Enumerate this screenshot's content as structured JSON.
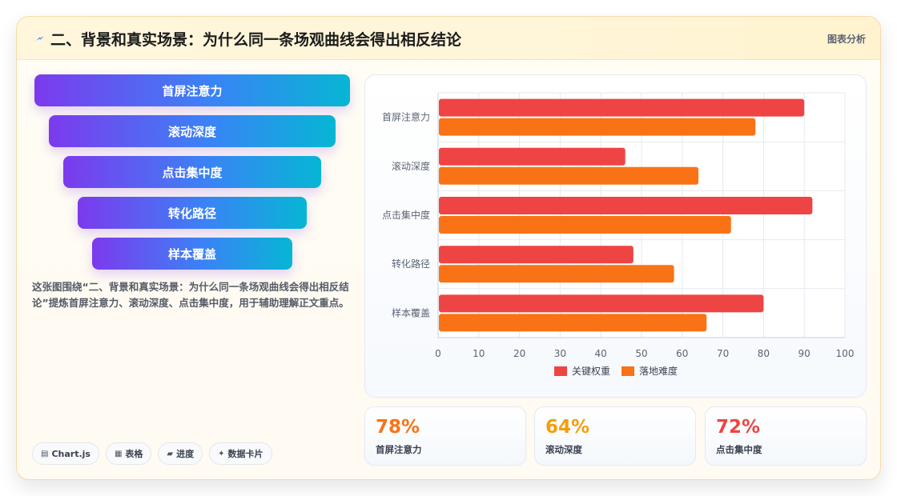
{
  "header": {
    "title": "二、背景和真实场景：为什么同一条场观曲线会得出相反结论",
    "tag": "图表分析"
  },
  "funnel": {
    "steps": [
      "首屏注意力",
      "滚动深度",
      "点击集中度",
      "转化路径",
      "样本覆盖"
    ]
  },
  "description": "这张图围绕“二、背景和真实场景：为什么同一条场观曲线会得出相反结论”提炼首屏注意力、滚动深度、点击集中度，用于辅助理解正文重点。",
  "chips": [
    {
      "icon": "▤",
      "label": "Chart.js"
    },
    {
      "icon": "▦",
      "label": "表格"
    },
    {
      "icon": "▰",
      "label": "进度"
    },
    {
      "icon": "✦",
      "label": "数据卡片"
    }
  ],
  "stats": [
    {
      "value": "78%",
      "label": "首屏注意力",
      "color": "#f97316"
    },
    {
      "value": "64%",
      "label": "滚动深度",
      "color": "#f59e0b"
    },
    {
      "value": "72%",
      "label": "点击集中度",
      "color": "#ef4444"
    }
  ],
  "chart_data": {
    "type": "bar",
    "orientation": "horizontal",
    "categories": [
      "首屏注意力",
      "滚动深度",
      "点击集中度",
      "转化路径",
      "样本覆盖"
    ],
    "series": [
      {
        "name": "关键权重",
        "color": "#ef4444",
        "values": [
          90,
          46,
          92,
          48,
          80
        ]
      },
      {
        "name": "落地难度",
        "color": "#f97316",
        "values": [
          78,
          64,
          72,
          58,
          66
        ]
      }
    ],
    "xlim": [
      0,
      100
    ],
    "xticks": [
      0,
      10,
      20,
      30,
      40,
      50,
      60,
      70,
      80,
      90,
      100
    ],
    "grid": true,
    "legend": "bottom"
  }
}
